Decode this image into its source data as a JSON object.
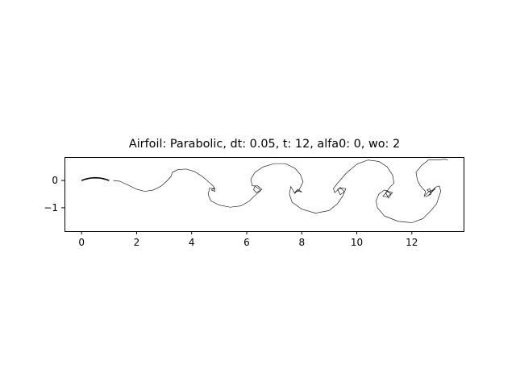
{
  "chart_data": {
    "type": "line",
    "title": "Airfoil: Parabolic, dt: 0.05, t: 12, alfa0: 0, wo: 2",
    "xlabel": "",
    "ylabel": "",
    "xlim": [
      -0.62,
      13.88
    ],
    "ylim": [
      -1.86,
      0.86
    ],
    "x_ticks": [
      0,
      2,
      4,
      6,
      8,
      10,
      12
    ],
    "y_ticks": [
      0,
      -1
    ],
    "x_tick_labels": [
      "0",
      "2",
      "4",
      "6",
      "8",
      "10",
      "12"
    ],
    "y_tick_labels": [
      "0",
      "−1"
    ],
    "grid": false,
    "legend": "none",
    "line_color": "#000000",
    "series": [
      {
        "role": "airfoil-profile",
        "x": [
          0.0,
          0.1,
          0.2,
          0.3,
          0.4,
          0.5,
          0.6,
          0.7,
          0.8,
          0.9,
          1.0
        ],
        "y": [
          0.0,
          0.036,
          0.064,
          0.084,
          0.096,
          0.1,
          0.096,
          0.084,
          0.064,
          0.036,
          0.0
        ]
      },
      {
        "role": "wake-trajectory",
        "x": [
          1.15,
          1.4,
          1.7,
          2.0,
          2.3,
          2.6,
          2.9,
          3.1,
          3.25,
          3.3,
          3.5,
          3.8,
          4.1,
          4.4,
          4.65,
          4.8,
          4.85,
          4.78,
          4.72,
          4.85,
          4.8,
          4.65,
          4.6,
          4.7,
          5.0,
          5.4,
          5.8,
          6.1,
          6.3,
          6.5,
          6.45,
          6.3,
          6.25,
          6.35,
          6.55,
          6.4,
          6.2,
          6.15,
          6.3,
          6.6,
          7.0,
          7.4,
          7.75,
          7.95,
          8.05,
          7.9,
          7.75,
          7.8,
          8.0,
          7.85,
          7.75,
          7.6,
          7.55,
          7.65,
          8.0,
          8.5,
          9.0,
          9.3,
          9.5,
          9.6,
          9.45,
          9.3,
          9.4,
          9.55,
          9.4,
          9.3,
          9.2,
          9.15,
          9.3,
          9.6,
          10.0,
          10.4,
          10.8,
          11.1,
          11.3,
          11.35,
          11.2,
          11.05,
          11.15,
          11.25,
          11.1,
          10.95,
          11.1,
          11.3,
          11.0,
          10.8,
          10.7,
          10.75,
          11.0,
          11.5,
          12.0,
          12.4,
          12.7,
          12.9,
          13.05,
          13.0,
          12.85,
          12.6,
          12.5,
          12.7,
          12.65,
          12.55,
          12.7,
          12.85,
          12.6,
          12.45,
          12.5,
          12.4,
          12.3,
          12.2,
          12.15,
          12.35,
          12.6,
          12.9,
          13.2,
          13.3
        ],
        "y": [
          0.0,
          -0.03,
          -0.17,
          -0.32,
          -0.4,
          -0.35,
          -0.2,
          -0.02,
          0.15,
          0.3,
          0.4,
          0.42,
          0.33,
          0.14,
          -0.08,
          -0.22,
          -0.32,
          -0.28,
          -0.35,
          -0.4,
          -0.3,
          -0.28,
          -0.52,
          -0.75,
          -0.9,
          -0.98,
          -0.93,
          -0.75,
          -0.55,
          -0.38,
          -0.3,
          -0.22,
          -0.33,
          -0.45,
          -0.33,
          -0.2,
          -0.2,
          0.05,
          0.3,
          0.5,
          0.62,
          0.62,
          0.45,
          0.22,
          -0.05,
          -0.35,
          -0.45,
          -0.38,
          -0.42,
          -0.32,
          -0.48,
          -0.22,
          -0.5,
          -0.8,
          -1.05,
          -1.2,
          -1.1,
          -0.85,
          -0.55,
          -0.3,
          -0.28,
          -0.32,
          -0.52,
          -0.42,
          -0.25,
          -0.35,
          -0.45,
          -0.3,
          -0.1,
          0.25,
          0.6,
          0.75,
          0.7,
          0.5,
          0.2,
          -0.1,
          -0.25,
          -0.45,
          -0.65,
          -0.5,
          -0.4,
          -0.58,
          -0.6,
          -0.45,
          -0.35,
          -0.5,
          -0.75,
          -1.0,
          -1.3,
          -1.5,
          -1.55,
          -1.4,
          -1.1,
          -0.85,
          -0.4,
          -0.2,
          -0.25,
          -0.55,
          -0.6,
          -0.5,
          -0.3,
          -0.35,
          -0.45,
          -0.3,
          -0.42,
          -0.58,
          -0.4,
          -0.3,
          -0.18,
          0.02,
          0.3,
          0.55,
          0.75,
          0.75,
          0.78,
          0.75
        ]
      }
    ]
  }
}
